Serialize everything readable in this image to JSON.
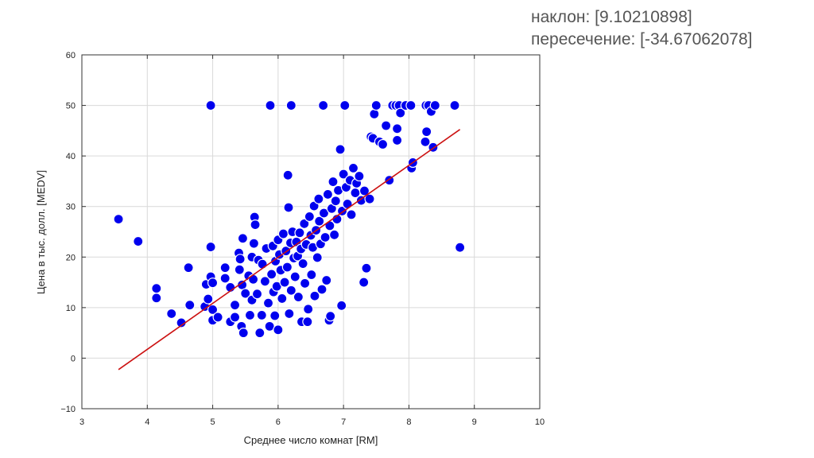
{
  "stats": {
    "slope_text": "наклон: [9.10210898]",
    "intercept_text": "пересечение: [-34.67062078]"
  },
  "colors": {
    "points": "#0000ee",
    "regression_line": "#cc1111",
    "grid": "#d9d9d9",
    "axes": "#333333",
    "stats_text": "#555555"
  },
  "chart_data": {
    "type": "scatter",
    "title": "",
    "xlabel": "Среднее число комнат [RM]",
    "ylabel": "Цена в тыс. долл. [MEDV]",
    "xlim": [
      3,
      10
    ],
    "ylim": [
      -10,
      60
    ],
    "xticks": [
      3,
      4,
      5,
      6,
      7,
      8,
      9,
      10
    ],
    "yticks": [
      -10,
      0,
      10,
      20,
      30,
      40,
      50,
      60
    ],
    "grid": true,
    "legend": false,
    "regression_line": {
      "slope": 9.10210898,
      "intercept": -34.67062078,
      "x_range": [
        3.56,
        8.78
      ]
    },
    "points": [
      [
        3.56,
        27.5
      ],
      [
        3.86,
        23.1
      ],
      [
        4.14,
        13.8
      ],
      [
        4.14,
        11.9
      ],
      [
        4.37,
        8.8
      ],
      [
        4.52,
        7.0
      ],
      [
        4.63,
        17.9
      ],
      [
        4.65,
        10.5
      ],
      [
        4.88,
        10.2
      ],
      [
        4.9,
        14.6
      ],
      [
        4.93,
        11.7
      ],
      [
        4.97,
        16.1
      ],
      [
        4.97,
        22.0
      ],
      [
        4.97,
        50.0
      ],
      [
        5.0,
        7.5
      ],
      [
        5.0,
        9.6
      ],
      [
        5.0,
        14.9
      ],
      [
        5.08,
        8.1
      ],
      [
        5.19,
        15.8
      ],
      [
        5.19,
        17.9
      ],
      [
        5.27,
        14.0
      ],
      [
        5.27,
        7.2
      ],
      [
        5.34,
        10.5
      ],
      [
        5.34,
        8.1
      ],
      [
        5.4,
        20.8
      ],
      [
        5.41,
        17.5
      ],
      [
        5.42,
        19.6
      ],
      [
        5.44,
        6.3
      ],
      [
        5.45,
        14.5
      ],
      [
        5.46,
        23.7
      ],
      [
        5.47,
        5.0
      ],
      [
        5.5,
        12.8
      ],
      [
        5.55,
        16.3
      ],
      [
        5.57,
        8.5
      ],
      [
        5.6,
        20.0
      ],
      [
        5.6,
        11.5
      ],
      [
        5.62,
        15.6
      ],
      [
        5.63,
        22.7
      ],
      [
        5.64,
        27.9
      ],
      [
        5.65,
        26.4
      ],
      [
        5.68,
        12.7
      ],
      [
        5.7,
        19.4
      ],
      [
        5.72,
        5.0
      ],
      [
        5.75,
        8.5
      ],
      [
        5.76,
        18.6
      ],
      [
        5.8,
        15.2
      ],
      [
        5.82,
        21.7
      ],
      [
        5.85,
        10.9
      ],
      [
        5.87,
        6.3
      ],
      [
        5.88,
        50.0
      ],
      [
        5.9,
        16.6
      ],
      [
        5.92,
        22.2
      ],
      [
        5.93,
        13.1
      ],
      [
        5.95,
        8.4
      ],
      [
        5.96,
        19.2
      ],
      [
        5.98,
        14.2
      ],
      [
        6.0,
        5.6
      ],
      [
        6.0,
        23.4
      ],
      [
        6.02,
        20.5
      ],
      [
        6.04,
        17.4
      ],
      [
        6.06,
        11.8
      ],
      [
        6.08,
        24.6
      ],
      [
        6.1,
        15.0
      ],
      [
        6.12,
        21.2
      ],
      [
        6.14,
        18.0
      ],
      [
        6.15,
        36.2
      ],
      [
        6.16,
        29.8
      ],
      [
        6.17,
        8.8
      ],
      [
        6.19,
        22.8
      ],
      [
        6.2,
        13.4
      ],
      [
        6.2,
        50.0
      ],
      [
        6.22,
        25.0
      ],
      [
        6.24,
        19.8
      ],
      [
        6.26,
        16.1
      ],
      [
        6.28,
        23.0
      ],
      [
        6.3,
        20.2
      ],
      [
        6.31,
        12.1
      ],
      [
        6.33,
        24.8
      ],
      [
        6.35,
        21.6
      ],
      [
        6.36,
        7.2
      ],
      [
        6.38,
        18.7
      ],
      [
        6.4,
        26.6
      ],
      [
        6.41,
        14.8
      ],
      [
        6.43,
        22.5
      ],
      [
        6.45,
        7.2
      ],
      [
        6.46,
        9.7
      ],
      [
        6.48,
        28.0
      ],
      [
        6.5,
        24.3
      ],
      [
        6.51,
        16.5
      ],
      [
        6.53,
        21.9
      ],
      [
        6.55,
        30.1
      ],
      [
        6.56,
        12.3
      ],
      [
        6.58,
        25.3
      ],
      [
        6.6,
        19.9
      ],
      [
        6.62,
        31.5
      ],
      [
        6.63,
        27.1
      ],
      [
        6.65,
        22.6
      ],
      [
        6.67,
        13.6
      ],
      [
        6.69,
        50.0
      ],
      [
        6.7,
        28.7
      ],
      [
        6.72,
        23.9
      ],
      [
        6.74,
        15.4
      ],
      [
        6.76,
        32.4
      ],
      [
        6.78,
        7.5
      ],
      [
        6.79,
        26.2
      ],
      [
        6.8,
        8.3
      ],
      [
        6.82,
        29.6
      ],
      [
        6.84,
        34.9
      ],
      [
        6.86,
        24.4
      ],
      [
        6.88,
        31.1
      ],
      [
        6.9,
        27.5
      ],
      [
        6.92,
        33.2
      ],
      [
        6.95,
        41.3
      ],
      [
        6.97,
        10.4
      ],
      [
        6.98,
        29.1
      ],
      [
        7.0,
        36.4
      ],
      [
        7.02,
        50.0
      ],
      [
        7.04,
        33.8
      ],
      [
        7.06,
        30.5
      ],
      [
        7.1,
        35.2
      ],
      [
        7.12,
        28.4
      ],
      [
        7.15,
        37.6
      ],
      [
        7.18,
        32.7
      ],
      [
        7.2,
        34.6
      ],
      [
        7.24,
        36.0
      ],
      [
        7.27,
        31.2
      ],
      [
        7.31,
        15.0
      ],
      [
        7.32,
        33.1
      ],
      [
        7.35,
        17.8
      ],
      [
        7.4,
        31.5
      ],
      [
        7.42,
        43.8
      ],
      [
        7.45,
        43.5
      ],
      [
        7.47,
        48.3
      ],
      [
        7.5,
        50.0
      ],
      [
        7.55,
        42.8
      ],
      [
        7.6,
        42.3
      ],
      [
        7.65,
        46.0
      ],
      [
        7.7,
        35.2
      ],
      [
        7.75,
        50.0
      ],
      [
        7.8,
        50.0
      ],
      [
        7.82,
        45.4
      ],
      [
        7.82,
        43.1
      ],
      [
        7.85,
        50.0
      ],
      [
        7.87,
        48.5
      ],
      [
        7.95,
        50.0
      ],
      [
        8.03,
        50.0
      ],
      [
        8.04,
        37.6
      ],
      [
        8.06,
        38.7
      ],
      [
        8.25,
        42.8
      ],
      [
        8.26,
        50.0
      ],
      [
        8.27,
        44.8
      ],
      [
        8.3,
        50.0
      ],
      [
        8.34,
        48.8
      ],
      [
        8.37,
        41.7
      ],
      [
        8.4,
        50.0
      ],
      [
        8.7,
        50.0
      ],
      [
        8.78,
        21.9
      ]
    ]
  }
}
